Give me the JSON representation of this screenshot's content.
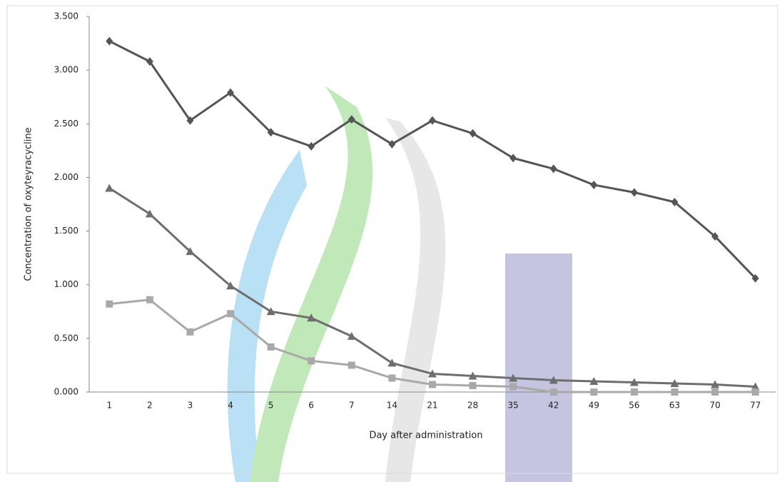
{
  "chart_data": {
    "type": "line",
    "x_label": "Day after administration",
    "y_label": "Concentration of oxyteyracycline",
    "categories": [
      "1",
      "2",
      "3",
      "4",
      "5",
      "6",
      "7",
      "14",
      "21",
      "28",
      "35",
      "42",
      "49",
      "56",
      "63",
      "70",
      "77"
    ],
    "series": [
      {
        "color": "#555555",
        "marker": "diamond",
        "values": [
          3.27,
          3.08,
          2.53,
          2.79,
          2.42,
          2.29,
          2.54,
          2.31,
          2.53,
          2.41,
          2.18,
          2.08,
          1.93,
          1.86,
          1.77,
          1.45,
          1.06
        ]
      },
      {
        "color": "#6e6e6e",
        "marker": "triangle",
        "values": [
          1.9,
          1.66,
          1.31,
          0.99,
          0.75,
          0.69,
          0.52,
          0.27,
          0.17,
          0.15,
          0.13,
          0.11,
          0.1,
          0.09,
          0.08,
          0.07,
          0.05
        ]
      },
      {
        "color": "#a9a9a9",
        "marker": "square",
        "values": [
          0.82,
          0.86,
          0.56,
          0.73,
          0.42,
          0.29,
          0.25,
          0.13,
          0.07,
          0.06,
          0.05,
          0,
          0,
          0,
          0,
          0,
          0
        ]
      }
    ],
    "ylim": [
      0,
      3.5
    ],
    "yticks": [
      {
        "value": 0,
        "label": "0.000"
      },
      {
        "value": 0.5,
        "label": "0.500"
      },
      {
        "value": 1,
        "label": "1.000"
      },
      {
        "value": 1.5,
        "label": "1.500"
      },
      {
        "value": 2,
        "label": "2.000"
      },
      {
        "value": 2.5,
        "label": "2.500"
      },
      {
        "value": 3,
        "label": "3.000"
      },
      {
        "value": 3.5,
        "label": "3.500"
      }
    ]
  }
}
